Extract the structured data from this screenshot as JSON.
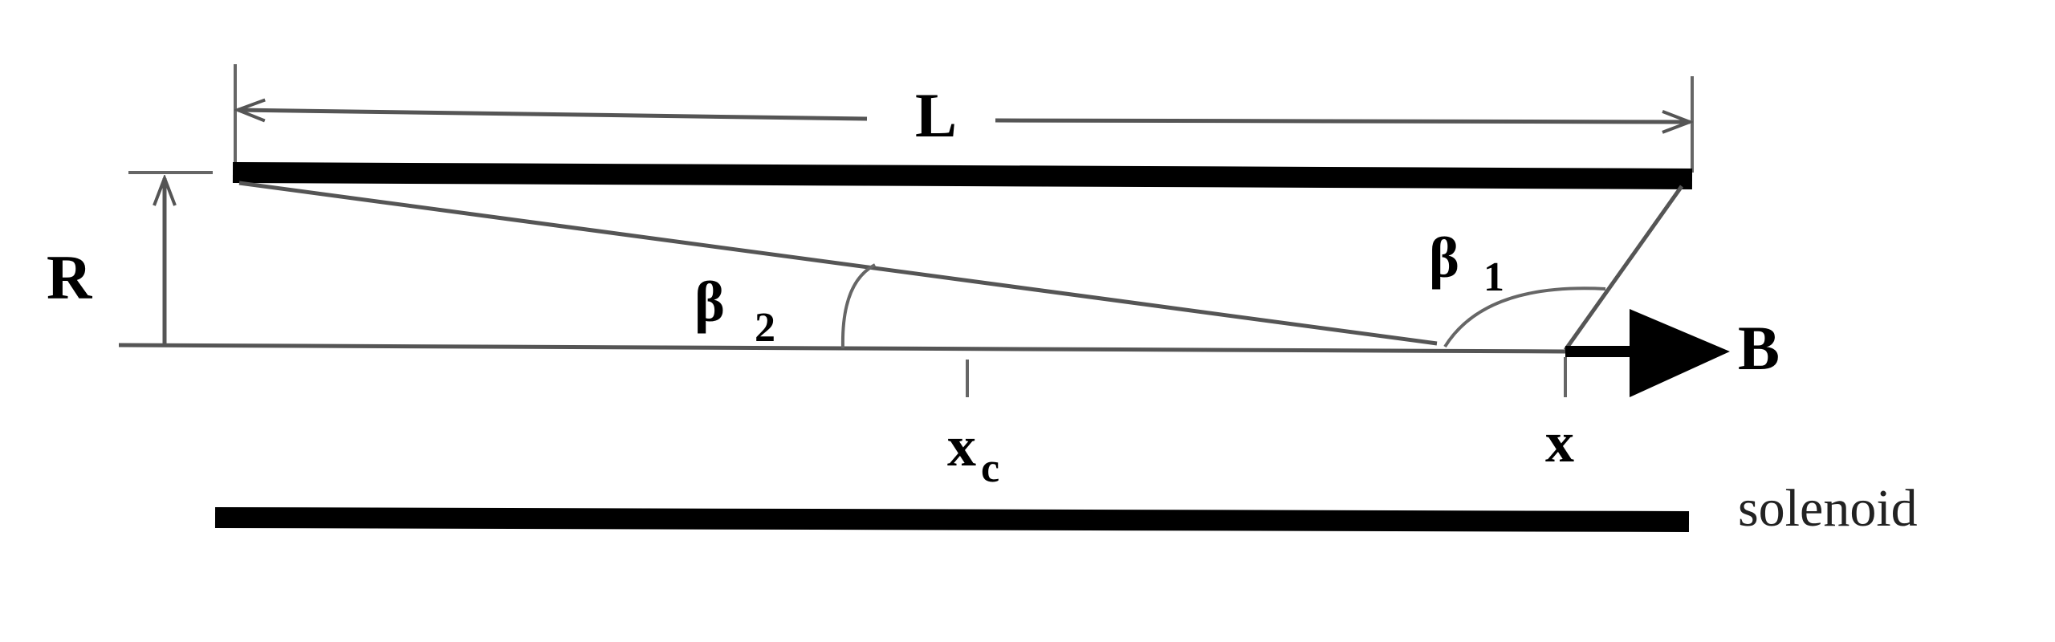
{
  "labels": {
    "length": "L",
    "radius": "R",
    "beta2": "β",
    "beta2_sub": "2",
    "beta1": "β",
    "beta1_sub": "1",
    "field": "B",
    "center": "x",
    "center_sub": "c",
    "point": "x",
    "solenoid": "solenoid"
  }
}
